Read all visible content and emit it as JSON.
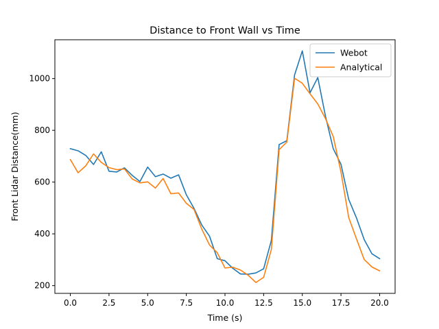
{
  "chart_data": {
    "type": "line",
    "title": "Distance to Front Wall vs Time",
    "xlabel": "Time (s)",
    "ylabel": "Front Lidar Distance(mm)",
    "xlim": [
      -1.0,
      21.0
    ],
    "ylim": [
      170,
      1150
    ],
    "xticks": [
      0.0,
      2.5,
      5.0,
      7.5,
      10.0,
      12.5,
      15.0,
      17.5,
      20.0
    ],
    "xtick_labels": [
      "0.0",
      "2.5",
      "5.0",
      "7.5",
      "10.0",
      "12.5",
      "15.0",
      "17.5",
      "20.0"
    ],
    "yticks": [
      200,
      400,
      600,
      800,
      1000
    ],
    "ytick_labels": [
      "200",
      "400",
      "600",
      "800",
      "1000"
    ],
    "grid": false,
    "legend_position": "top-right",
    "x": [
      0.0,
      0.5,
      1.0,
      1.5,
      2.0,
      2.5,
      3.0,
      3.5,
      4.0,
      4.5,
      5.0,
      5.5,
      6.0,
      6.5,
      7.0,
      7.5,
      8.0,
      8.5,
      9.0,
      9.5,
      10.0,
      10.5,
      11.0,
      11.5,
      12.0,
      12.5,
      13.0,
      13.5,
      14.0,
      14.5,
      15.0,
      15.5,
      16.0,
      16.5,
      17.0,
      17.5,
      18.0,
      18.5,
      19.0,
      19.5,
      20.0
    ],
    "series": [
      {
        "name": "Webot",
        "color": "#1f77b4",
        "values": [
          729,
          721,
          703,
          668,
          717,
          642,
          639,
          655,
          626,
          602,
          658,
          621,
          631,
          615,
          628,
          551,
          498,
          434,
          391,
          304,
          296,
          267,
          245,
          244,
          249,
          265,
          375,
          745,
          760,
          1014,
          1107,
          945,
          1004,
          854,
          729,
          669,
          533,
          462,
          378,
          323,
          304
        ]
      },
      {
        "name": "Analytical",
        "color": "#ff7f0e",
        "values": [
          687,
          636,
          663,
          709,
          676,
          656,
          648,
          651,
          612,
          597,
          601,
          577,
          614,
          555,
          558,
          518,
          494,
          418,
          357,
          327,
          268,
          271,
          260,
          240,
          212,
          232,
          340,
          725,
          755,
          1001,
          982,
          941,
          902,
          845,
          776,
          639,
          463,
          381,
          301,
          272,
          257
        ]
      }
    ]
  }
}
